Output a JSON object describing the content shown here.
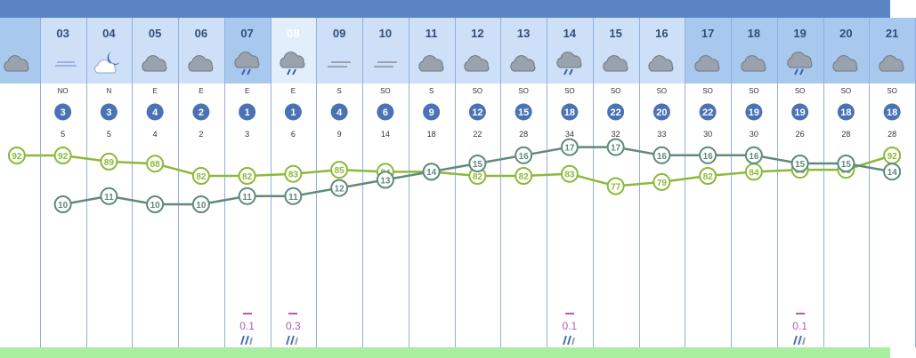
{
  "chart_data": {
    "type": "line",
    "columns": [
      {
        "hour": "",
        "icon": "cloud-icon",
        "dir": "",
        "speed": "",
        "gust": "",
        "temp": null,
        "hum": 92,
        "precip": ""
      },
      {
        "hour": "03",
        "icon": "moon-wind-icon",
        "dir": "NO",
        "speed": "3",
        "gust": "5",
        "temp": 10,
        "hum": 92,
        "precip": ""
      },
      {
        "hour": "04",
        "icon": "moon-cloud-icon",
        "dir": "N",
        "speed": "3",
        "gust": "5",
        "temp": 11,
        "hum": 89,
        "precip": ""
      },
      {
        "hour": "05",
        "icon": "cloud-icon",
        "dir": "E",
        "speed": "4",
        "gust": "4",
        "temp": 10,
        "hum": 88,
        "precip": ""
      },
      {
        "hour": "06",
        "icon": "cloud-icon",
        "dir": "E",
        "speed": "2",
        "gust": "2",
        "temp": 10,
        "hum": 82,
        "precip": ""
      },
      {
        "hour": "07",
        "icon": "cloud-rain-icon",
        "dir": "E",
        "speed": "1",
        "gust": "3",
        "temp": 11,
        "hum": 82,
        "precip": "0.1"
      },
      {
        "hour": "08",
        "icon": "cloud-rain-icon",
        "dir": "E",
        "speed": "1",
        "gust": "6",
        "temp": 11,
        "hum": 83,
        "precip": "0.3"
      },
      {
        "hour": "09",
        "icon": "fog-icon",
        "dir": "S",
        "speed": "4",
        "gust": "9",
        "temp": 12,
        "hum": 85,
        "precip": ""
      },
      {
        "hour": "10",
        "icon": "fog-icon",
        "dir": "SO",
        "speed": "6",
        "gust": "14",
        "temp": 13,
        "hum": 84,
        "precip": ""
      },
      {
        "hour": "11",
        "icon": "cloud-icon",
        "dir": "S",
        "speed": "9",
        "gust": "18",
        "temp": 14,
        "hum": 84,
        "precip": ""
      },
      {
        "hour": "12",
        "icon": "cloud-icon",
        "dir": "SO",
        "speed": "12",
        "gust": "22",
        "temp": 15,
        "hum": 82,
        "precip": ""
      },
      {
        "hour": "13",
        "icon": "cloud-icon",
        "dir": "SO",
        "speed": "15",
        "gust": "28",
        "temp": 16,
        "hum": 82,
        "precip": ""
      },
      {
        "hour": "14",
        "icon": "cloud-rain-icon",
        "dir": "SO",
        "speed": "18",
        "gust": "34",
        "temp": 17,
        "hum": 83,
        "precip": "0.1"
      },
      {
        "hour": "15",
        "icon": "cloud-icon",
        "dir": "SO",
        "speed": "22",
        "gust": "32",
        "temp": 17,
        "hum": 77,
        "precip": ""
      },
      {
        "hour": "16",
        "icon": "cloud-icon",
        "dir": "SO",
        "speed": "20",
        "gust": "33",
        "temp": 16,
        "hum": 79,
        "precip": ""
      },
      {
        "hour": "17",
        "icon": "cloud-icon",
        "dir": "SO",
        "speed": "22",
        "gust": "30",
        "temp": 16,
        "hum": 82,
        "precip": ""
      },
      {
        "hour": "18",
        "icon": "cloud-icon",
        "dir": "SO",
        "speed": "19",
        "gust": "30",
        "temp": 16,
        "hum": 84,
        "precip": ""
      },
      {
        "hour": "19",
        "icon": "cloud-rain-icon",
        "dir": "SO",
        "speed": "19",
        "gust": "26",
        "temp": 15,
        "hum": 85,
        "precip": "0.1"
      },
      {
        "hour": "20",
        "icon": "cloud-icon",
        "dir": "SO",
        "speed": "18",
        "gust": "28",
        "temp": 15,
        "hum": 85,
        "precip": ""
      },
      {
        "hour": "21",
        "icon": "cloud-icon",
        "dir": "SO",
        "speed": "18",
        "gust": "28",
        "temp": 14,
        "hum": 92,
        "precip": ""
      }
    ],
    "series": [
      {
        "key": "hum",
        "color": "#8db83a"
      },
      {
        "key": "temp",
        "color": "#5f8a7c"
      }
    ],
    "header_colors": {
      "light": "#cde0f8",
      "dark": "#a9c8ee"
    },
    "speed_badge_color": "#4a72b5"
  }
}
